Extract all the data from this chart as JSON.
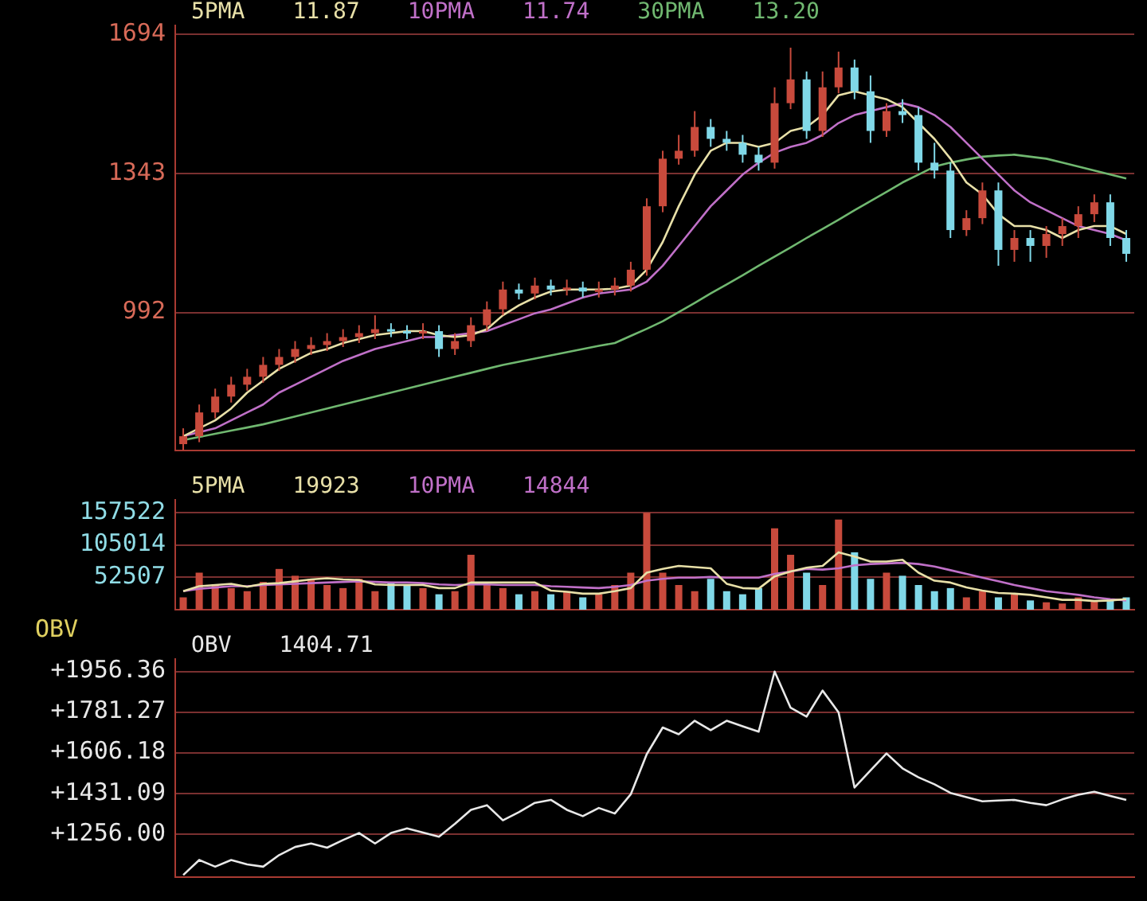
{
  "chart_data": [
    {
      "type": "candlestick",
      "categories": [
        null,
        null,
        null,
        null,
        null,
        null,
        null,
        null,
        null,
        null,
        null,
        null,
        null,
        null,
        null,
        null,
        null,
        null,
        null,
        null,
        null,
        null,
        null,
        null,
        null,
        null,
        null,
        null,
        null,
        null,
        null,
        null,
        null,
        null,
        null,
        null,
        null,
        null,
        null,
        null,
        null,
        null,
        null,
        null,
        null,
        null,
        null,
        null,
        null,
        null,
        null,
        null,
        null,
        null,
        null,
        null,
        null,
        null,
        null,
        null
      ],
      "ohlc": [
        [
          660,
          700,
          645,
          680
        ],
        [
          680,
          760,
          665,
          740
        ],
        [
          740,
          800,
          725,
          780
        ],
        [
          780,
          830,
          765,
          810
        ],
        [
          810,
          850,
          795,
          830
        ],
        [
          830,
          880,
          815,
          860
        ],
        [
          860,
          900,
          845,
          880
        ],
        [
          880,
          920,
          865,
          900
        ],
        [
          900,
          930,
          885,
          910
        ],
        [
          910,
          940,
          895,
          920
        ],
        [
          920,
          950,
          905,
          930
        ],
        [
          930,
          960,
          915,
          940
        ],
        [
          940,
          985,
          925,
          950
        ],
        [
          950,
          965,
          930,
          945
        ],
        [
          945,
          960,
          925,
          940
        ],
        [
          940,
          965,
          925,
          945
        ],
        [
          945,
          960,
          880,
          900
        ],
        [
          900,
          940,
          885,
          920
        ],
        [
          920,
          980,
          905,
          960
        ],
        [
          960,
          1020,
          945,
          1000
        ],
        [
          1000,
          1070,
          985,
          1050
        ],
        [
          1050,
          1065,
          1025,
          1040
        ],
        [
          1040,
          1080,
          1025,
          1060
        ],
        [
          1060,
          1075,
          1035,
          1050
        ],
        [
          1050,
          1075,
          1035,
          1055
        ],
        [
          1055,
          1070,
          1030,
          1045
        ],
        [
          1045,
          1070,
          1030,
          1050
        ],
        [
          1050,
          1080,
          1035,
          1060
        ],
        [
          1060,
          1120,
          1045,
          1100
        ],
        [
          1100,
          1280,
          1085,
          1260
        ],
        [
          1260,
          1400,
          1245,
          1380
        ],
        [
          1380,
          1440,
          1365,
          1400
        ],
        [
          1400,
          1500,
          1385,
          1460
        ],
        [
          1460,
          1480,
          1410,
          1430
        ],
        [
          1430,
          1450,
          1400,
          1420
        ],
        [
          1420,
          1440,
          1370,
          1390
        ],
        [
          1390,
          1410,
          1350,
          1370
        ],
        [
          1370,
          1560,
          1355,
          1520
        ],
        [
          1520,
          1660,
          1505,
          1580
        ],
        [
          1580,
          1600,
          1430,
          1450
        ],
        [
          1450,
          1600,
          1435,
          1560
        ],
        [
          1560,
          1650,
          1545,
          1610
        ],
        [
          1610,
          1630,
          1530,
          1550
        ],
        [
          1550,
          1590,
          1420,
          1450
        ],
        [
          1450,
          1520,
          1435,
          1500
        ],
        [
          1500,
          1530,
          1470,
          1490
        ],
        [
          1490,
          1510,
          1350,
          1370
        ],
        [
          1370,
          1420,
          1330,
          1350
        ],
        [
          1350,
          1370,
          1180,
          1200
        ],
        [
          1200,
          1250,
          1185,
          1230
        ],
        [
          1230,
          1320,
          1215,
          1300
        ],
        [
          1300,
          1320,
          1110,
          1150
        ],
        [
          1150,
          1200,
          1120,
          1180
        ],
        [
          1180,
          1200,
          1120,
          1160
        ],
        [
          1160,
          1210,
          1130,
          1190
        ],
        [
          1190,
          1230,
          1160,
          1210
        ],
        [
          1210,
          1260,
          1180,
          1240
        ],
        [
          1240,
          1290,
          1220,
          1270
        ],
        [
          1270,
          1290,
          1160,
          1180
        ],
        [
          1180,
          1200,
          1120,
          1140
        ]
      ],
      "colors": [
        "#c84a3c",
        "#c84a3c",
        "#c84a3c",
        "#c84a3c",
        "#c84a3c",
        "#c84a3c",
        "#c84a3c",
        "#c84a3c",
        "#c84a3c",
        "#c84a3c",
        "#c84a3c",
        "#c84a3c",
        "#c84a3c",
        "#80d8e8",
        "#80d8e8",
        "#c84a3c",
        "#80d8e8",
        "#c84a3c",
        "#c84a3c",
        "#c84a3c",
        "#c84a3c",
        "#80d8e8",
        "#c84a3c",
        "#80d8e8",
        "#c84a3c",
        "#80d8e8",
        "#c84a3c",
        "#c84a3c",
        "#c84a3c",
        "#c84a3c",
        "#c84a3c",
        "#c84a3c",
        "#c84a3c",
        "#80d8e8",
        "#80d8e8",
        "#80d8e8",
        "#80d8e8",
        "#c84a3c",
        "#c84a3c",
        "#80d8e8",
        "#c84a3c",
        "#c84a3c",
        "#80d8e8",
        "#80d8e8",
        "#c84a3c",
        "#80d8e8",
        "#80d8e8",
        "#80d8e8",
        "#80d8e8",
        "#c84a3c",
        "#c84a3c",
        "#80d8e8",
        "#c84a3c",
        "#80d8e8",
        "#c84a3c",
        "#c84a3c",
        "#c84a3c",
        "#c84a3c",
        "#80d8e8",
        "#80d8e8"
      ],
      "series": [
        {
          "name": "5PMA",
          "type": "line",
          "color": "#e8e0a8",
          "values": [
            680,
            700,
            720,
            750,
            790,
            820,
            850,
            870,
            890,
            900,
            915,
            925,
            935,
            940,
            945,
            945,
            935,
            930,
            935,
            950,
            985,
            1010,
            1030,
            1045,
            1050,
            1050,
            1050,
            1052,
            1060,
            1100,
            1170,
            1260,
            1340,
            1400,
            1420,
            1420,
            1410,
            1420,
            1450,
            1460,
            1490,
            1540,
            1550,
            1540,
            1530,
            1510,
            1470,
            1430,
            1380,
            1320,
            1290,
            1240,
            1210,
            1210,
            1200,
            1180,
            1200,
            1210,
            1210,
            1190
          ]
        },
        {
          "name": "10PMA",
          "type": "line",
          "color": "#c070c8",
          "values": [
            680,
            690,
            700,
            720,
            740,
            760,
            790,
            810,
            830,
            850,
            870,
            885,
            900,
            910,
            920,
            930,
            930,
            935,
            940,
            945,
            960,
            975,
            990,
            1000,
            1015,
            1030,
            1040,
            1045,
            1050,
            1070,
            1110,
            1160,
            1210,
            1260,
            1300,
            1340,
            1370,
            1395,
            1410,
            1420,
            1440,
            1470,
            1490,
            1500,
            1510,
            1520,
            1510,
            1490,
            1460,
            1420,
            1380,
            1340,
            1300,
            1270,
            1250,
            1230,
            1210,
            1200,
            1190,
            1174
          ]
        },
        {
          "name": "30PMA",
          "type": "line",
          "color": "#70b870",
          "values": [
            670,
            678,
            686,
            694,
            702,
            710,
            720,
            730,
            740,
            750,
            760,
            770,
            780,
            790,
            800,
            810,
            820,
            830,
            840,
            850,
            860,
            868,
            876,
            884,
            892,
            900,
            908,
            915,
            933,
            951,
            970,
            993,
            1016,
            1040,
            1063,
            1086,
            1110,
            1133,
            1156,
            1180,
            1203,
            1226,
            1250,
            1273,
            1296,
            1320,
            1340,
            1360,
            1370,
            1378,
            1385,
            1388,
            1390,
            1385,
            1380,
            1370,
            1360,
            1350,
            1340,
            1330
          ]
        }
      ],
      "annotations": [
        "11.87",
        "11.74",
        "13.20"
      ],
      "ylim": [
        644,
        1716
      ],
      "yticks": [
        992,
        1343,
        1694
      ],
      "grid": "y",
      "tick_labels": "y"
    },
    {
      "type": "bar",
      "categories": [
        null,
        null,
        null,
        null,
        null,
        null,
        null,
        null,
        null,
        null,
        null,
        null,
        null,
        null,
        null,
        null,
        null,
        null,
        null,
        null,
        null,
        null,
        null,
        null,
        null,
        null,
        null,
        null,
        null,
        null,
        null,
        null,
        null,
        null,
        null,
        null,
        null,
        null,
        null,
        null,
        null,
        null,
        null,
        null,
        null,
        null,
        null,
        null,
        null,
        null,
        null,
        null,
        null,
        null,
        null,
        null,
        null,
        null,
        null,
        null
      ],
      "values": [
        20000,
        60000,
        40000,
        35000,
        30000,
        45000,
        66000,
        55000,
        50000,
        40000,
        35000,
        50000,
        30000,
        45000,
        40000,
        35000,
        25000,
        30000,
        89000,
        40000,
        35000,
        25000,
        30000,
        25000,
        30000,
        20000,
        25000,
        40000,
        60000,
        157000,
        60000,
        40000,
        30000,
        50000,
        30000,
        25000,
        35000,
        132000,
        89000,
        60000,
        40000,
        146000,
        93000,
        50000,
        60000,
        55000,
        40000,
        30000,
        35000,
        20000,
        30000,
        20000,
        25000,
        15000,
        12000,
        10000,
        20000,
        15000,
        18000,
        20000
      ],
      "colors": [
        "#c84a3c",
        "#c84a3c",
        "#c84a3c",
        "#c84a3c",
        "#c84a3c",
        "#c84a3c",
        "#c84a3c",
        "#c84a3c",
        "#c84a3c",
        "#c84a3c",
        "#c84a3c",
        "#c84a3c",
        "#c84a3c",
        "#80d8e8",
        "#80d8e8",
        "#c84a3c",
        "#80d8e8",
        "#c84a3c",
        "#c84a3c",
        "#c84a3c",
        "#c84a3c",
        "#80d8e8",
        "#c84a3c",
        "#80d8e8",
        "#c84a3c",
        "#80d8e8",
        "#c84a3c",
        "#c84a3c",
        "#c84a3c",
        "#c84a3c",
        "#c84a3c",
        "#c84a3c",
        "#c84a3c",
        "#80d8e8",
        "#80d8e8",
        "#80d8e8",
        "#80d8e8",
        "#c84a3c",
        "#c84a3c",
        "#80d8e8",
        "#c84a3c",
        "#c84a3c",
        "#80d8e8",
        "#80d8e8",
        "#c84a3c",
        "#80d8e8",
        "#80d8e8",
        "#80d8e8",
        "#80d8e8",
        "#c84a3c",
        "#c84a3c",
        "#80d8e8",
        "#c84a3c",
        "#80d8e8",
        "#c84a3c",
        "#c84a3c",
        "#c84a3c",
        "#c84a3c",
        "#80d8e8",
        "#80d8e8"
      ],
      "series": [
        {
          "name": "5PMA",
          "type": "line",
          "color": "#e8e0a8",
          "values": [
            30000,
            38000,
            40000,
            42000,
            37000,
            42000,
            43000,
            46000,
            49000,
            51000,
            49000,
            48000,
            41000,
            40000,
            40000,
            40000,
            35000,
            35000,
            44000,
            44000,
            44000,
            44000,
            44000,
            31000,
            29000,
            26000,
            26000,
            30000,
            35000,
            60000,
            66000,
            71000,
            69000,
            67000,
            42000,
            35000,
            34000,
            54000,
            62000,
            68000,
            71000,
            93000,
            86000,
            78000,
            78000,
            81000,
            60000,
            47000,
            44000,
            36000,
            31000,
            27000,
            26000,
            24000,
            20000,
            16000,
            16000,
            14000,
            15000,
            17000
          ]
        },
        {
          "name": "10PMA",
          "type": "line",
          "color": "#c070c8",
          "values": [
            30000,
            34000,
            36000,
            38000,
            38000,
            40000,
            41000,
            42000,
            43000,
            44000,
            45000,
            46000,
            45000,
            44000,
            44000,
            43000,
            41000,
            40000,
            41000,
            41000,
            40000,
            40000,
            40000,
            38000,
            37000,
            36000,
            35000,
            37000,
            40000,
            47000,
            50000,
            52000,
            52000,
            53000,
            52000,
            52000,
            52000,
            58000,
            62000,
            66000,
            65000,
            67000,
            72000,
            74000,
            75000,
            76000,
            74000,
            70000,
            64000,
            58000,
            52000,
            46000,
            40000,
            35000,
            30000,
            27000,
            24000,
            20000,
            17000,
            15000
          ]
        }
      ],
      "annotations": [
        "19923",
        "14844"
      ],
      "ylim": [
        0,
        178000
      ],
      "yticks": [
        52507,
        105014,
        157522
      ],
      "grid": "y",
      "tick_labels": "y"
    },
    {
      "type": "line",
      "ylabel": "OBV",
      "categories": [
        null,
        null,
        null,
        null,
        null,
        null,
        null,
        null,
        null,
        null,
        null,
        null,
        null,
        null,
        null,
        null,
        null,
        null,
        null,
        null,
        null,
        null,
        null,
        null,
        null,
        null,
        null,
        null,
        null,
        null,
        null,
        null,
        null,
        null,
        null,
        null,
        null,
        null,
        null,
        null,
        null,
        null,
        null,
        null,
        null,
        null,
        null,
        null,
        null,
        null,
        null,
        null,
        null,
        null,
        null,
        null,
        null,
        null,
        null,
        null
      ],
      "series": [
        {
          "name": "OBV",
          "color": "#e8e8e8",
          "values": [
            1079,
            1144,
            1115,
            1144,
            1125,
            1115,
            1165,
            1200,
            1215,
            1197,
            1230,
            1260,
            1215,
            1260,
            1280,
            1262,
            1244,
            1300,
            1360,
            1380,
            1315,
            1350,
            1390,
            1403,
            1360,
            1333,
            1368,
            1344,
            1427,
            1600,
            1715,
            1686,
            1744,
            1703,
            1744,
            1720,
            1697,
            1956,
            1800,
            1762,
            1874,
            1780,
            1456,
            1530,
            1603,
            1539,
            1500,
            1470,
            1433,
            1415,
            1397,
            1400,
            1403,
            1390,
            1380,
            1405,
            1425,
            1438,
            1420,
            1403
          ]
        }
      ],
      "annotations": [
        "1404.71"
      ],
      "ylim": [
        1070,
        2010
      ],
      "yticks": [
        {
          "value": 1256.0,
          "label": "+1256.00"
        },
        {
          "value": 1431.09,
          "label": "+1431.09"
        },
        {
          "value": 1606.18,
          "label": "+1606.18"
        },
        {
          "value": 1781.27,
          "label": "+1781.27"
        },
        {
          "value": 1956.36,
          "label": "+1956.36"
        }
      ],
      "grid": "y",
      "tick_labels": "y"
    }
  ]
}
